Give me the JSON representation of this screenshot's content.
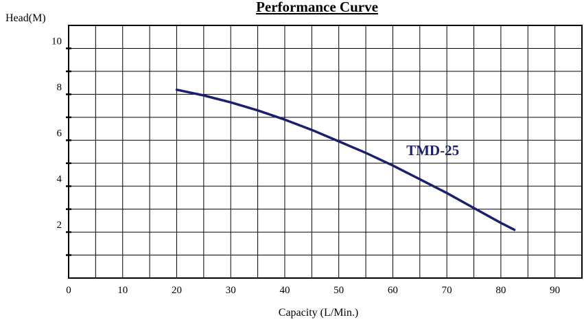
{
  "chart_data": {
    "type": "line",
    "title": "Performance Curve",
    "xlabel": "Capacity (L/Min.)",
    "ylabel": "Head(M)",
    "xlim": [
      0,
      95
    ],
    "ylim": [
      0,
      11
    ],
    "grid": true,
    "x_ticks": [
      "0",
      "10",
      "20",
      "30",
      "40",
      "50",
      "60",
      "70",
      "80",
      "90"
    ],
    "y_ticks": [
      "2",
      "4",
      "6",
      "8",
      "10"
    ],
    "series": [
      {
        "name": "TMD-25",
        "color": "#1a1f6e",
        "x": [
          20,
          25,
          30,
          35,
          40,
          45,
          50,
          55,
          60,
          65,
          70,
          75,
          80,
          82.5
        ],
        "y": [
          8.2,
          7.95,
          7.65,
          7.3,
          6.9,
          6.45,
          5.95,
          5.45,
          4.9,
          4.3,
          3.7,
          3.05,
          2.4,
          2.1
        ]
      }
    ]
  }
}
